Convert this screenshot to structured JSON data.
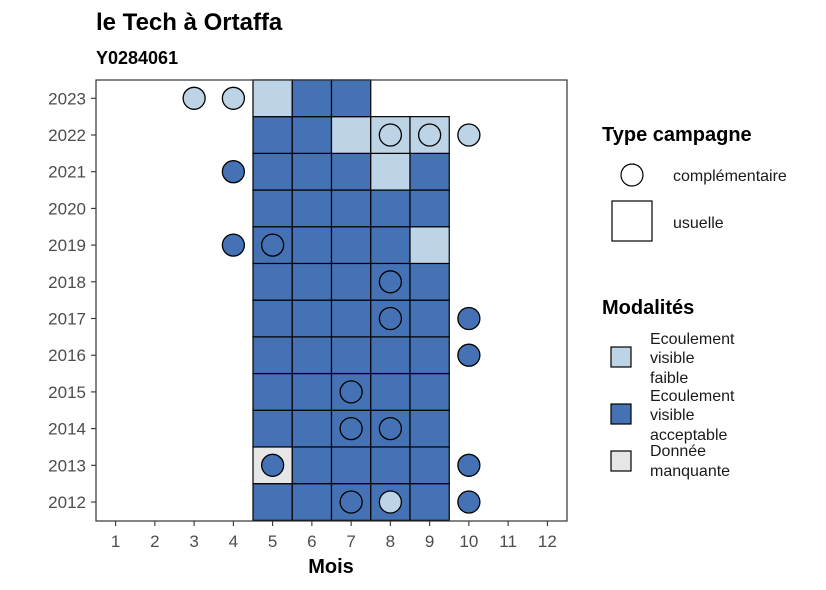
{
  "chart_data": {
    "type": "heatmap",
    "title": "le Tech à Ortaffa",
    "subtitle": "Y0284061",
    "xlabel": "Mois",
    "ylabel": "",
    "x_ticks": [
      "1",
      "2",
      "3",
      "4",
      "5",
      "6",
      "7",
      "8",
      "9",
      "10",
      "11",
      "12"
    ],
    "y_ticks": [
      "2012",
      "2013",
      "2014",
      "2015",
      "2016",
      "2017",
      "2018",
      "2019",
      "2020",
      "2021",
      "2022",
      "2023"
    ],
    "grid": false,
    "colors": {
      "faible": "#bcd4e6",
      "acceptable": "#4472b4",
      "manquante": "#e6e6e6"
    },
    "cells": [
      {
        "year": 2012,
        "month": 5,
        "m": "acceptable"
      },
      {
        "year": 2012,
        "month": 6,
        "m": "acceptable"
      },
      {
        "year": 2012,
        "month": 7,
        "m": "acceptable"
      },
      {
        "year": 2012,
        "month": 8,
        "m": "acceptable"
      },
      {
        "year": 2012,
        "month": 9,
        "m": "acceptable"
      },
      {
        "year": 2013,
        "month": 5,
        "m": "manquante"
      },
      {
        "year": 2013,
        "month": 6,
        "m": "acceptable"
      },
      {
        "year": 2013,
        "month": 7,
        "m": "acceptable"
      },
      {
        "year": 2013,
        "month": 8,
        "m": "acceptable"
      },
      {
        "year": 2013,
        "month": 9,
        "m": "acceptable"
      },
      {
        "year": 2014,
        "month": 5,
        "m": "acceptable"
      },
      {
        "year": 2014,
        "month": 6,
        "m": "acceptable"
      },
      {
        "year": 2014,
        "month": 7,
        "m": "acceptable"
      },
      {
        "year": 2014,
        "month": 8,
        "m": "acceptable"
      },
      {
        "year": 2014,
        "month": 9,
        "m": "acceptable"
      },
      {
        "year": 2015,
        "month": 5,
        "m": "acceptable"
      },
      {
        "year": 2015,
        "month": 6,
        "m": "acceptable"
      },
      {
        "year": 2015,
        "month": 7,
        "m": "acceptable"
      },
      {
        "year": 2015,
        "month": 8,
        "m": "acceptable"
      },
      {
        "year": 2015,
        "month": 9,
        "m": "acceptable"
      },
      {
        "year": 2016,
        "month": 5,
        "m": "acceptable"
      },
      {
        "year": 2016,
        "month": 6,
        "m": "acceptable"
      },
      {
        "year": 2016,
        "month": 7,
        "m": "acceptable"
      },
      {
        "year": 2016,
        "month": 8,
        "m": "acceptable"
      },
      {
        "year": 2016,
        "month": 9,
        "m": "acceptable"
      },
      {
        "year": 2017,
        "month": 5,
        "m": "acceptable"
      },
      {
        "year": 2017,
        "month": 6,
        "m": "acceptable"
      },
      {
        "year": 2017,
        "month": 7,
        "m": "acceptable"
      },
      {
        "year": 2017,
        "month": 8,
        "m": "acceptable"
      },
      {
        "year": 2017,
        "month": 9,
        "m": "acceptable"
      },
      {
        "year": 2018,
        "month": 5,
        "m": "acceptable"
      },
      {
        "year": 2018,
        "month": 6,
        "m": "acceptable"
      },
      {
        "year": 2018,
        "month": 7,
        "m": "acceptable"
      },
      {
        "year": 2018,
        "month": 8,
        "m": "acceptable"
      },
      {
        "year": 2018,
        "month": 9,
        "m": "acceptable"
      },
      {
        "year": 2019,
        "month": 5,
        "m": "acceptable"
      },
      {
        "year": 2019,
        "month": 6,
        "m": "acceptable"
      },
      {
        "year": 2019,
        "month": 7,
        "m": "acceptable"
      },
      {
        "year": 2019,
        "month": 8,
        "m": "acceptable"
      },
      {
        "year": 2019,
        "month": 9,
        "m": "faible"
      },
      {
        "year": 2020,
        "month": 5,
        "m": "acceptable"
      },
      {
        "year": 2020,
        "month": 6,
        "m": "acceptable"
      },
      {
        "year": 2020,
        "month": 7,
        "m": "acceptable"
      },
      {
        "year": 2020,
        "month": 8,
        "m": "acceptable"
      },
      {
        "year": 2020,
        "month": 9,
        "m": "acceptable"
      },
      {
        "year": 2021,
        "month": 5,
        "m": "acceptable"
      },
      {
        "year": 2021,
        "month": 6,
        "m": "acceptable"
      },
      {
        "year": 2021,
        "month": 7,
        "m": "acceptable"
      },
      {
        "year": 2021,
        "month": 8,
        "m": "faible"
      },
      {
        "year": 2021,
        "month": 9,
        "m": "acceptable"
      },
      {
        "year": 2022,
        "month": 5,
        "m": "acceptable"
      },
      {
        "year": 2022,
        "month": 6,
        "m": "acceptable"
      },
      {
        "year": 2022,
        "month": 7,
        "m": "faible"
      },
      {
        "year": 2022,
        "month": 8,
        "m": "faible"
      },
      {
        "year": 2022,
        "month": 9,
        "m": "faible"
      },
      {
        "year": 2023,
        "month": 5,
        "m": "faible"
      },
      {
        "year": 2023,
        "month": 6,
        "m": "acceptable"
      },
      {
        "year": 2023,
        "month": 7,
        "m": "acceptable"
      }
    ],
    "points": [
      {
        "year": 2023,
        "month": 3,
        "m": "faible"
      },
      {
        "year": 2023,
        "month": 4,
        "m": "faible"
      },
      {
        "year": 2022,
        "month": 8,
        "m": "faible"
      },
      {
        "year": 2022,
        "month": 9,
        "m": "faible"
      },
      {
        "year": 2022,
        "month": 10,
        "m": "faible"
      },
      {
        "year": 2021,
        "month": 4,
        "m": "acceptable"
      },
      {
        "year": 2019,
        "month": 4,
        "m": "acceptable"
      },
      {
        "year": 2019,
        "month": 5,
        "m": "acceptable"
      },
      {
        "year": 2018,
        "month": 8,
        "m": "acceptable"
      },
      {
        "year": 2017,
        "month": 8,
        "m": "acceptable"
      },
      {
        "year": 2017,
        "month": 10,
        "m": "acceptable"
      },
      {
        "year": 2016,
        "month": 10,
        "m": "acceptable"
      },
      {
        "year": 2015,
        "month": 7,
        "m": "acceptable"
      },
      {
        "year": 2014,
        "month": 7,
        "m": "acceptable"
      },
      {
        "year": 2014,
        "month": 8,
        "m": "acceptable"
      },
      {
        "year": 2013,
        "month": 5,
        "m": "acceptable"
      },
      {
        "year": 2013,
        "month": 10,
        "m": "acceptable"
      },
      {
        "year": 2012,
        "month": 7,
        "m": "acceptable"
      },
      {
        "year": 2012,
        "month": 8,
        "m": "faible"
      },
      {
        "year": 2012,
        "month": 10,
        "m": "acceptable"
      }
    ],
    "legend": {
      "placement": "right",
      "type_title": "Type campagne",
      "type_items": [
        {
          "shape": "circle",
          "label": "complémentaire"
        },
        {
          "shape": "square",
          "label": "usuelle"
        }
      ],
      "modal_title": "Modalités",
      "modal_items": [
        {
          "key": "faible",
          "lines": [
            "Ecoulement",
            "visible",
            "faible"
          ]
        },
        {
          "key": "acceptable",
          "lines": [
            "Ecoulement",
            "visible",
            "acceptable"
          ]
        },
        {
          "key": "manquante",
          "lines": [
            "Donnée",
            "manquante"
          ]
        }
      ]
    }
  }
}
